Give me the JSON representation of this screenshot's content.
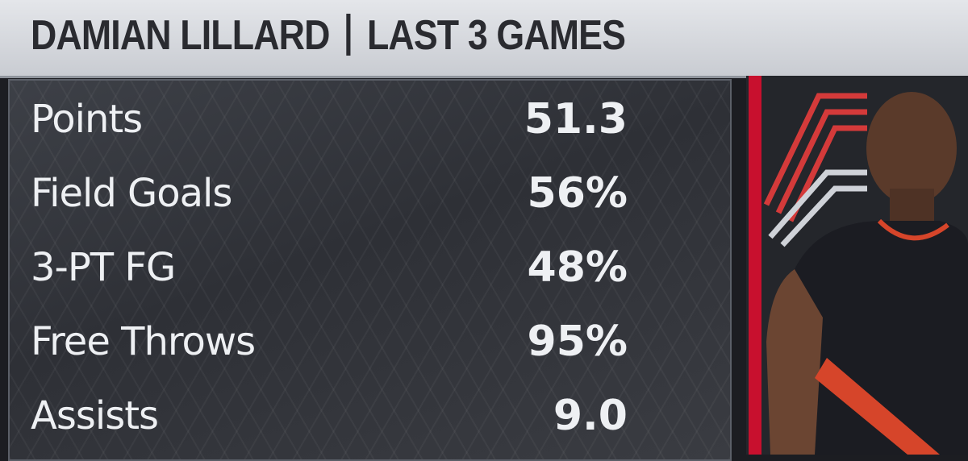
{
  "header": {
    "name": "DAMIAN LILLARD",
    "subtitle": "LAST 3 GAMES"
  },
  "table": {
    "rows": [
      [
        "Points",
        "51.3"
      ],
      [
        "Field Goals",
        "56%"
      ],
      [
        "3-PT FG",
        "48%"
      ],
      [
        "Free Throws",
        "95%"
      ],
      [
        "Assists",
        "9.0"
      ]
    ]
  }
}
